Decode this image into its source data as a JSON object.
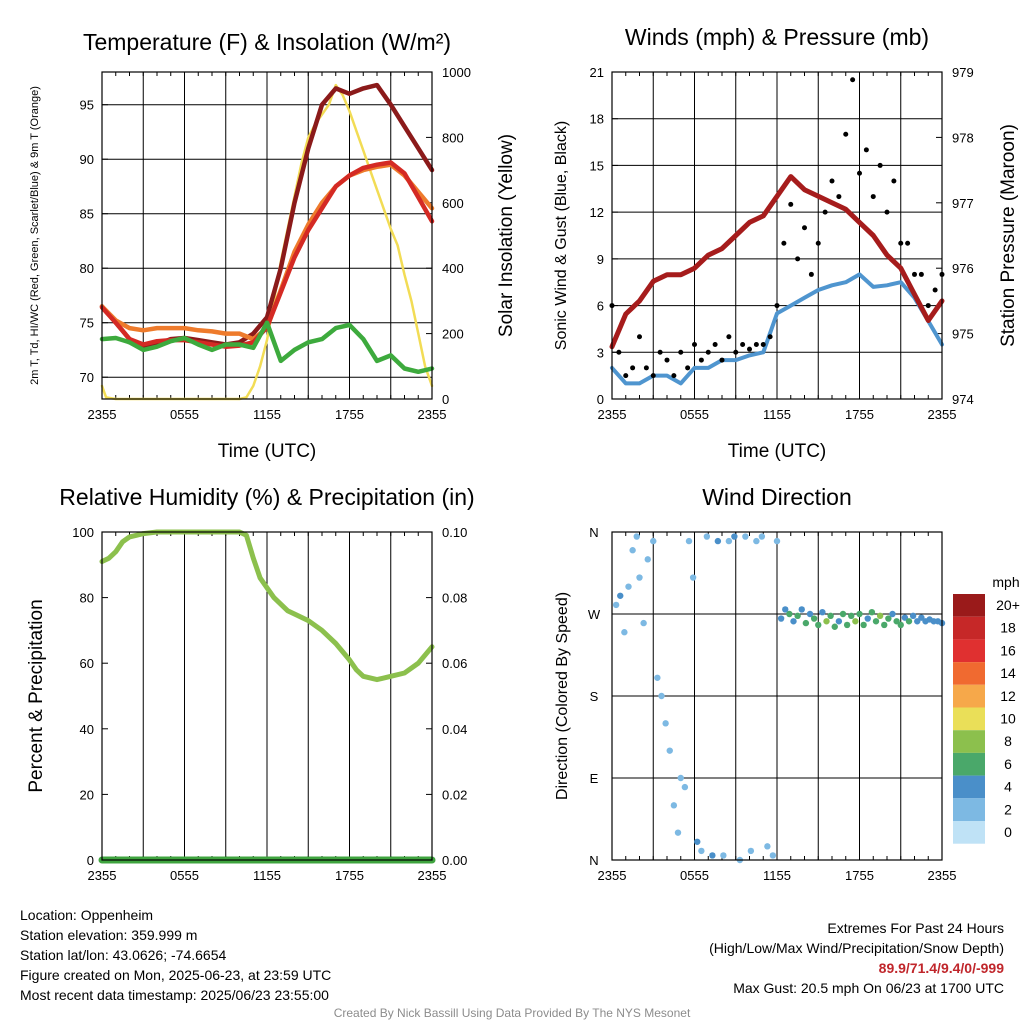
{
  "chart_data": [
    {
      "id": "temperature",
      "type": "line",
      "title": "Temperature (F) & Insolation (W/m²)",
      "xlabel": "Time (UTC)",
      "ylabel_left": "2m T, Td, HI/WC (Red, Green, Scarlet/Blue) & 9m T (Orange)",
      "ylabel_right": "Solar Insolation (Yellow)",
      "x_ticks": [
        "2355",
        "0555",
        "1155",
        "1755",
        "2355"
      ],
      "ylim_left": [
        68,
        98
      ],
      "yticks_left": [
        70,
        75,
        80,
        85,
        90,
        95
      ],
      "ylim_right": [
        0,
        1000
      ],
      "yticks_right": [
        0,
        200,
        400,
        600,
        800,
        1000
      ],
      "series": [
        {
          "axis": "left",
          "color": "#8b1a1a",
          "hours": [
            0,
            1,
            2,
            3,
            4,
            5,
            6,
            7,
            8,
            9,
            10,
            11,
            12,
            13,
            14,
            15,
            16,
            17,
            18,
            19,
            20,
            21,
            22,
            23,
            24
          ],
          "values": [
            76.5,
            75,
            73.5,
            72.8,
            73,
            73.5,
            73.6,
            73.4,
            73.2,
            73,
            73.2,
            74,
            75.5,
            80,
            86,
            91,
            95,
            96.5,
            96,
            96.5,
            96.8,
            95,
            93,
            91,
            89
          ]
        },
        {
          "axis": "left",
          "color": "#ee7b2c",
          "hours": [
            0,
            1,
            2,
            3,
            4,
            5,
            6,
            7,
            8,
            9,
            10,
            11,
            12,
            13,
            14,
            15,
            16,
            17,
            18,
            19,
            20,
            21,
            22,
            23,
            24
          ],
          "values": [
            76.5,
            75.2,
            74.5,
            74.3,
            74.5,
            74.5,
            74.5,
            74.3,
            74.2,
            74,
            74,
            73.5,
            74.5,
            78,
            81.5,
            84,
            86,
            87.5,
            88.5,
            89,
            89.3,
            89.5,
            88.5,
            87,
            85.5
          ]
        },
        {
          "axis": "left",
          "color": "#d42a24",
          "hours": [
            0,
            1,
            2,
            3,
            4,
            5,
            6,
            7,
            8,
            9,
            10,
            11,
            12,
            13,
            14,
            15,
            16,
            17,
            18,
            19,
            20,
            21,
            22,
            23,
            24
          ],
          "values": [
            76.4,
            75,
            73.5,
            73,
            73.3,
            73.4,
            73.4,
            73.2,
            73,
            72.8,
            72.9,
            73.2,
            74.6,
            77.8,
            81,
            83.5,
            85.5,
            87.5,
            88.5,
            89.2,
            89.5,
            89.7,
            88.7,
            86.5,
            84.3
          ]
        },
        {
          "axis": "left",
          "color": "#3daa3d",
          "hours": [
            0,
            1,
            2,
            3,
            4,
            5,
            6,
            7,
            8,
            9,
            10,
            11,
            12,
            13,
            14,
            15,
            16,
            17,
            18,
            19,
            20,
            21,
            22,
            23,
            24
          ],
          "values": [
            73.5,
            73.6,
            73.2,
            72.5,
            72.8,
            73.3,
            73.6,
            73,
            72.5,
            73,
            73,
            72.7,
            75,
            71.5,
            72.5,
            73.2,
            73.5,
            74.5,
            74.8,
            73.5,
            71.5,
            72,
            70.8,
            70.5,
            70.8
          ]
        },
        {
          "axis": "right",
          "color": "#f2dc55",
          "hours": [
            0,
            0.3,
            1,
            2,
            3,
            4,
            5,
            6,
            7,
            8,
            9,
            10,
            10.5,
            11,
            11.5,
            12,
            12.5,
            13,
            13.5,
            14,
            14.5,
            15,
            15.5,
            16,
            16.5,
            17,
            17.5,
            18,
            18.5,
            19,
            19.5,
            20,
            20.5,
            21,
            21.5,
            22,
            22.5,
            23,
            23.5,
            24
          ],
          "values": [
            40,
            5,
            0,
            0,
            0,
            0,
            0,
            0,
            0,
            0,
            0,
            0,
            5,
            40,
            100,
            180,
            300,
            420,
            520,
            620,
            720,
            800,
            840,
            870,
            900,
            960,
            930,
            880,
            820,
            760,
            700,
            640,
            580,
            520,
            470,
            380,
            300,
            200,
            100,
            40
          ]
        }
      ]
    },
    {
      "id": "winds",
      "type": "line",
      "title": "Winds (mph) & Pressure (mb)",
      "xlabel": "Time (UTC)",
      "ylabel_left": "Sonic Wind & Gust (Blue, Black)",
      "ylabel_right": "Station Pressure (Maroon)",
      "x_ticks": [
        "2355",
        "0555",
        "1155",
        "1755",
        "2355"
      ],
      "ylim_left": [
        0,
        21
      ],
      "yticks_left": [
        0,
        3,
        6,
        9,
        12,
        15,
        18,
        21
      ],
      "ylim_right": [
        974,
        979
      ],
      "yticks_right": [
        974,
        975,
        976,
        977,
        978,
        979
      ],
      "series": [
        {
          "name": "",
          "axis": "left",
          "kind": "line",
          "color": "#4f95cf",
          "hours": [
            0,
            1,
            2,
            3,
            4,
            5,
            6,
            7,
            8,
            9,
            10,
            11,
            12,
            13,
            14,
            15,
            16,
            17,
            18,
            19,
            20,
            21,
            22,
            23,
            24
          ],
          "values": [
            2,
            1,
            1,
            1.5,
            1.5,
            1,
            2,
            2,
            2.5,
            2.5,
            2.8,
            3,
            5.5,
            6,
            6.5,
            7,
            7.3,
            7.5,
            8,
            7.2,
            7.3,
            7.5,
            6.5,
            5,
            3.5
          ]
        },
        {
          "name": "",
          "axis": "left",
          "kind": "dots",
          "color": "#000000",
          "hours": [
            0,
            0.5,
            1,
            1.5,
            2,
            2.5,
            3,
            3.5,
            4,
            4.5,
            5,
            5.5,
            6,
            6.5,
            7,
            7.5,
            8,
            8.5,
            9,
            9.5,
            10,
            10.5,
            11,
            11.5,
            12,
            12.5,
            13,
            13.5,
            14,
            14.5,
            15,
            15.5,
            16,
            16.5,
            17,
            17.5,
            18,
            18.5,
            19,
            19.5,
            20,
            20.5,
            21,
            21.5,
            22,
            22.5,
            23,
            23.5,
            24
          ],
          "values": [
            6,
            3,
            1.5,
            2,
            4,
            2,
            1.5,
            3,
            2.5,
            1.5,
            3,
            2,
            3.5,
            2.5,
            3,
            3.5,
            2.5,
            4,
            3,
            3.5,
            3.2,
            3.5,
            3.5,
            4,
            6,
            10,
            12.5,
            9,
            11,
            8,
            10,
            12,
            14,
            13,
            17,
            20.5,
            14.5,
            16,
            13,
            15,
            12,
            14,
            10,
            10,
            8,
            8,
            6,
            7,
            8
          ]
        },
        {
          "name": "",
          "axis": "right",
          "kind": "line",
          "color": "#a61c1c",
          "hours": [
            0,
            1,
            2,
            3,
            4,
            5,
            6,
            7,
            8,
            9,
            10,
            11,
            12,
            13,
            14,
            15,
            16,
            17,
            18,
            19,
            20,
            21,
            22,
            23,
            24
          ],
          "values": [
            974.8,
            975.3,
            975.5,
            975.8,
            975.9,
            975.9,
            976,
            976.2,
            976.3,
            976.5,
            976.7,
            976.8,
            977.1,
            977.4,
            977.2,
            977.1,
            977.0,
            976.9,
            976.7,
            976.5,
            976.2,
            976,
            975.6,
            975.2,
            975.5
          ]
        }
      ]
    },
    {
      "id": "humidity",
      "type": "line",
      "title": "Relative Humidity (%) & Precipitation (in)",
      "ylabel_left": "Percent & Precipitation",
      "x_ticks": [
        "2355",
        "0555",
        "1155",
        "1755",
        "2355"
      ],
      "ylim_left": [
        0,
        100
      ],
      "yticks_left": [
        0,
        20,
        40,
        60,
        80,
        100
      ],
      "ylim_right": [
        0,
        0.1
      ],
      "yticks_right": [
        "0.00",
        "0.02",
        "0.04",
        "0.06",
        "0.08",
        "0.10"
      ],
      "series": [
        {
          "name": "",
          "axis": "left",
          "color": "#8cc04d",
          "hours": [
            0,
            0.5,
            1,
            1.5,
            2,
            2.5,
            3,
            4,
            5,
            6,
            7,
            8,
            9,
            10,
            10.5,
            11,
            11.5,
            12,
            12.5,
            13,
            13.5,
            14,
            15,
            16,
            17,
            18,
            18.5,
            19,
            20,
            21,
            22,
            23,
            24
          ],
          "values": [
            91,
            92,
            94,
            97,
            98.5,
            99,
            99.5,
            100,
            100,
            100,
            100,
            100,
            100,
            100,
            99,
            92,
            86,
            83,
            80,
            78,
            76,
            75,
            73,
            70,
            66,
            61,
            58,
            56,
            55,
            56,
            57,
            60,
            65
          ]
        },
        {
          "name": "",
          "axis": "left",
          "color": "#3fa43f",
          "hours": [
            0,
            24
          ],
          "values": [
            0,
            0
          ]
        }
      ]
    },
    {
      "id": "direction",
      "type": "scatter",
      "title": "Wind Direction",
      "ylabel_left": "Direction (Colored By Speed)",
      "x_ticks": [
        "2355",
        "0555",
        "1155",
        "1755",
        "2355"
      ],
      "y_ticks": [
        "N",
        "E",
        "S",
        "W",
        "N"
      ],
      "ylim": [
        0,
        360
      ],
      "legend_title": "mph",
      "legend_labels": [
        "20+",
        "18",
        "16",
        "14",
        "12",
        "10",
        "8",
        "6",
        "4",
        "2",
        "0"
      ],
      "legend_colors": [
        "#9a1a1a",
        "#c62828",
        "#e03030",
        "#f06a30",
        "#f6a84a",
        "#eadf58",
        "#8cc04d",
        "#4aa86a",
        "#4a8fc9",
        "#7db9e3",
        "#bfe2f6"
      ],
      "points": [
        [
          0.3,
          280,
          1
        ],
        [
          0.6,
          290,
          3
        ],
        [
          0.9,
          250,
          1
        ],
        [
          1.2,
          300,
          2
        ],
        [
          1.5,
          340,
          1
        ],
        [
          1.8,
          355,
          1
        ],
        [
          2.0,
          310,
          2
        ],
        [
          2.3,
          260,
          1
        ],
        [
          2.6,
          330,
          1
        ],
        [
          3.0,
          350,
          2
        ],
        [
          3.3,
          200,
          1
        ],
        [
          3.6,
          180,
          2
        ],
        [
          3.9,
          150,
          2
        ],
        [
          4.2,
          120,
          2
        ],
        [
          4.5,
          60,
          2
        ],
        [
          4.8,
          30,
          2
        ],
        [
          5.0,
          90,
          2
        ],
        [
          5.3,
          80,
          1
        ],
        [
          5.6,
          350,
          2
        ],
        [
          5.9,
          310,
          1
        ],
        [
          6.2,
          20,
          3
        ],
        [
          6.5,
          10,
          2
        ],
        [
          6.9,
          355,
          2
        ],
        [
          7.3,
          5,
          3
        ],
        [
          7.7,
          350,
          3
        ],
        [
          8.1,
          5,
          2
        ],
        [
          8.5,
          350,
          2
        ],
        [
          8.9,
          355,
          3
        ],
        [
          9.3,
          0,
          2
        ],
        [
          9.7,
          355,
          2
        ],
        [
          10.1,
          10,
          2
        ],
        [
          10.5,
          350,
          2
        ],
        [
          10.9,
          355,
          1
        ],
        [
          11.3,
          15,
          2
        ],
        [
          11.7,
          5,
          2
        ],
        [
          12.0,
          350,
          1
        ],
        [
          12.3,
          265,
          4
        ],
        [
          12.6,
          275,
          4
        ],
        [
          12.9,
          270,
          5
        ],
        [
          13.2,
          262,
          4
        ],
        [
          13.5,
          268,
          6
        ],
        [
          13.8,
          275,
          4
        ],
        [
          14.1,
          260,
          5
        ],
        [
          14.4,
          270,
          4
        ],
        [
          14.7,
          265,
          6
        ],
        [
          15.0,
          258,
          5
        ],
        [
          15.3,
          272,
          4
        ],
        [
          15.6,
          262,
          7
        ],
        [
          15.9,
          268,
          6
        ],
        [
          16.2,
          256,
          5
        ],
        [
          16.5,
          262,
          4
        ],
        [
          16.8,
          270,
          6
        ],
        [
          17.1,
          258,
          5
        ],
        [
          17.4,
          268,
          6
        ],
        [
          17.7,
          262,
          7
        ],
        [
          18.0,
          270,
          5
        ],
        [
          18.3,
          258,
          6
        ],
        [
          18.6,
          265,
          4
        ],
        [
          18.9,
          272,
          6
        ],
        [
          19.2,
          262,
          5
        ],
        [
          19.5,
          268,
          7
        ],
        [
          19.8,
          258,
          6
        ],
        [
          20.1,
          265,
          5
        ],
        [
          20.4,
          270,
          4
        ],
        [
          20.7,
          262,
          6
        ],
        [
          21.0,
          258,
          5
        ],
        [
          21.3,
          266,
          4
        ],
        [
          21.6,
          262,
          5
        ],
        [
          21.9,
          268,
          4
        ],
        [
          22.2,
          262,
          4
        ],
        [
          22.5,
          266,
          4
        ],
        [
          22.8,
          262,
          4
        ],
        [
          23.1,
          264,
          3
        ],
        [
          23.4,
          262,
          4
        ],
        [
          23.7,
          262,
          3
        ],
        [
          24.0,
          260,
          4
        ]
      ]
    }
  ],
  "info": {
    "location": "Location: Oppenheim",
    "elevation": "Station elevation: 359.999 m",
    "latlon": "Station lat/lon: 43.0626; -74.6654",
    "created": "Figure created on Mon, 2025-06-23, at 23:59 UTC",
    "latest": "Most recent data timestamp: 2025/06/23 23:55:00"
  },
  "extremes": {
    "title": "Extremes For Past 24 Hours",
    "subtitle": "(High/Low/Max Wind/Precipitation/Snow Depth)",
    "values": "89.9/71.4/9.4/0/-999",
    "gust": "Max Gust: 20.5 mph On 06/23 at 1700 UTC"
  },
  "credit": "Created By Nick Bassill Using Data Provided By The NYS Mesonet"
}
